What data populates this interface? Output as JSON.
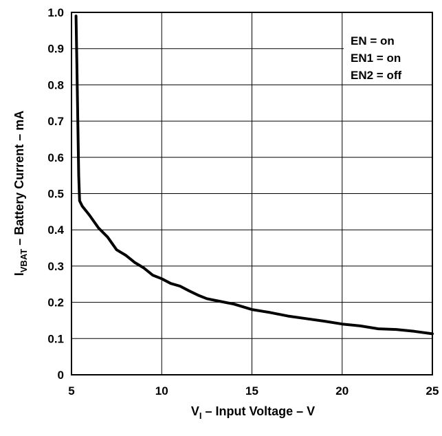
{
  "chart_data": {
    "type": "line",
    "xlabel": {
      "main": "V",
      "sub": "I",
      "rest": " – Input Voltage  –  V"
    },
    "ylabel": {
      "main": "I",
      "sub": "VBAT",
      "rest": " – Battery Current  –  mA"
    },
    "xlim": [
      5,
      25
    ],
    "ylim": [
      0,
      1.0
    ],
    "x_ticks": [
      "5",
      "10",
      "15",
      "20",
      "25"
    ],
    "y_ticks": [
      "0",
      "0.1",
      "0.2",
      "0.3",
      "0.4",
      "0.5",
      "0.6",
      "0.7",
      "0.8",
      "0.9",
      "1.0"
    ],
    "grid": true,
    "annotations": [
      "EN = on",
      "EN1 = on",
      "EN2 = off"
    ],
    "series": [
      {
        "color": "#000000",
        "points": [
          [
            5.25,
            0.99
          ],
          [
            5.3,
            0.85
          ],
          [
            5.35,
            0.7
          ],
          [
            5.4,
            0.55
          ],
          [
            5.45,
            0.48
          ],
          [
            5.6,
            0.465
          ],
          [
            6.0,
            0.44
          ],
          [
            6.5,
            0.405
          ],
          [
            7.0,
            0.38
          ],
          [
            7.5,
            0.345
          ],
          [
            8.0,
            0.33
          ],
          [
            8.5,
            0.31
          ],
          [
            9.0,
            0.295
          ],
          [
            9.5,
            0.275
          ],
          [
            10.0,
            0.265
          ],
          [
            10.5,
            0.252
          ],
          [
            11.0,
            0.245
          ],
          [
            11.5,
            0.232
          ],
          [
            12.0,
            0.22
          ],
          [
            12.5,
            0.21
          ],
          [
            13.0,
            0.205
          ],
          [
            14.0,
            0.195
          ],
          [
            15.0,
            0.18
          ],
          [
            16.0,
            0.172
          ],
          [
            17.0,
            0.162
          ],
          [
            18.0,
            0.155
          ],
          [
            19.0,
            0.148
          ],
          [
            20.0,
            0.14
          ],
          [
            21.0,
            0.135
          ],
          [
            22.0,
            0.127
          ],
          [
            23.0,
            0.125
          ],
          [
            24.0,
            0.12
          ],
          [
            25.0,
            0.113
          ]
        ]
      }
    ]
  }
}
